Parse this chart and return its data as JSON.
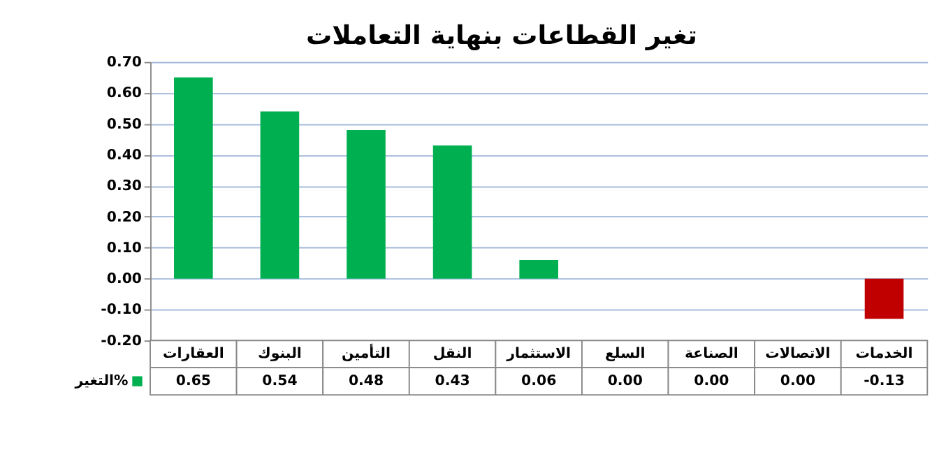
{
  "chart_data": {
    "type": "bar",
    "title": "تغير القطاعات بنهاية التعاملات",
    "categories": [
      "العقارات",
      "البنوك",
      "التأمين",
      "النقل",
      "الاستثمار",
      "السلع",
      "الصناعة",
      "الاتصالات",
      "الخدمات"
    ],
    "series": [
      {
        "name": "التغير%",
        "color": "#00b050",
        "colors": [
          "#00b050",
          "#00b050",
          "#00b050",
          "#00b050",
          "#00b050",
          "#00b050",
          "#00b050",
          "#00b050",
          "#c00000"
        ],
        "values": [
          0.65,
          0.54,
          0.48,
          0.43,
          0.06,
          0.0,
          0.0,
          0.0,
          -0.13
        ]
      }
    ],
    "ylim": [
      -0.2,
      0.7
    ],
    "yticks": [
      {
        "value": -0.2,
        "label": "-0.20"
      },
      {
        "value": -0.1,
        "label": "-0.10"
      },
      {
        "value": 0,
        "label": "0.00"
      },
      {
        "value": 0.1,
        "label": "0.10"
      },
      {
        "value": 0.2,
        "label": "0.20"
      },
      {
        "value": 0.3,
        "label": "0.30"
      },
      {
        "value": 0.4,
        "label": "0.40"
      },
      {
        "value": 0.5,
        "label": "0.50"
      },
      {
        "value": 0.6,
        "label": "0.60"
      },
      {
        "value": 0.7,
        "label": "0.70"
      }
    ],
    "value_labels": [
      "0.65",
      "0.54",
      "0.48",
      "0.43",
      "0.06",
      "0.00",
      "0.00",
      "0.00",
      "-0.13"
    ],
    "grid": "y"
  }
}
